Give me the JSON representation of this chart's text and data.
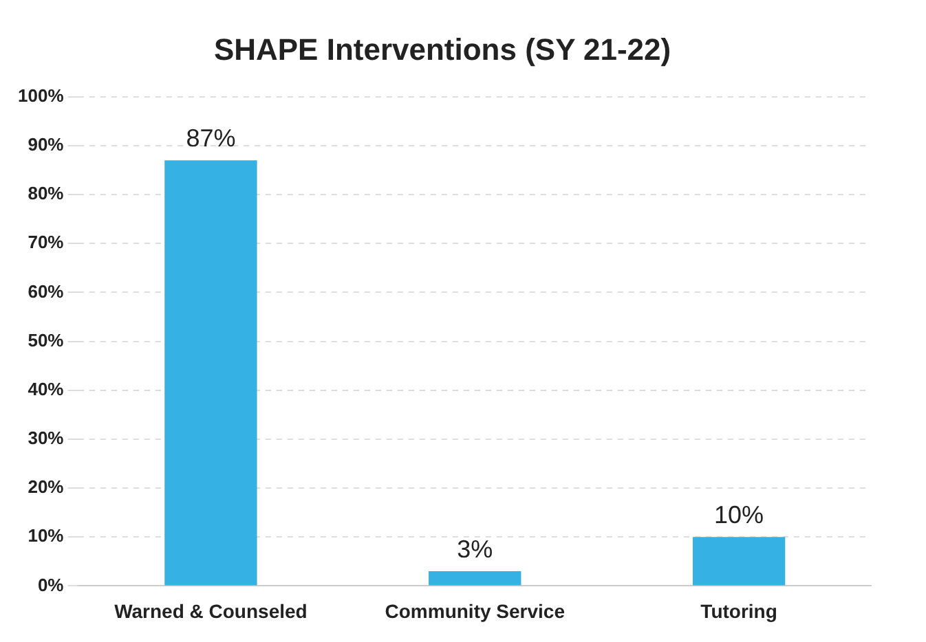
{
  "chart_data": {
    "type": "bar",
    "title": "SHAPE Interventions (SY 21-22)",
    "categories": [
      "Warned & Counseled",
      "Community Service",
      "Tutoring"
    ],
    "values": [
      87,
      3,
      10
    ],
    "color": "#35b1e4",
    "value_labels": [
      "87%",
      "3%",
      "10%"
    ],
    "ylim": [
      0,
      100
    ],
    "yticks": [
      {
        "value": 0,
        "label": "0%"
      },
      {
        "value": 10,
        "label": "10%"
      },
      {
        "value": 20,
        "label": "20%"
      },
      {
        "value": 30,
        "label": "30%"
      },
      {
        "value": 40,
        "label": "40%"
      },
      {
        "value": 50,
        "label": "50%"
      },
      {
        "value": 60,
        "label": "60%"
      },
      {
        "value": 70,
        "label": "70%"
      },
      {
        "value": 80,
        "label": "80%"
      },
      {
        "value": 90,
        "label": "90%"
      },
      {
        "value": 100,
        "label": "100%"
      }
    ],
    "grid": "y",
    "legend": false
  }
}
